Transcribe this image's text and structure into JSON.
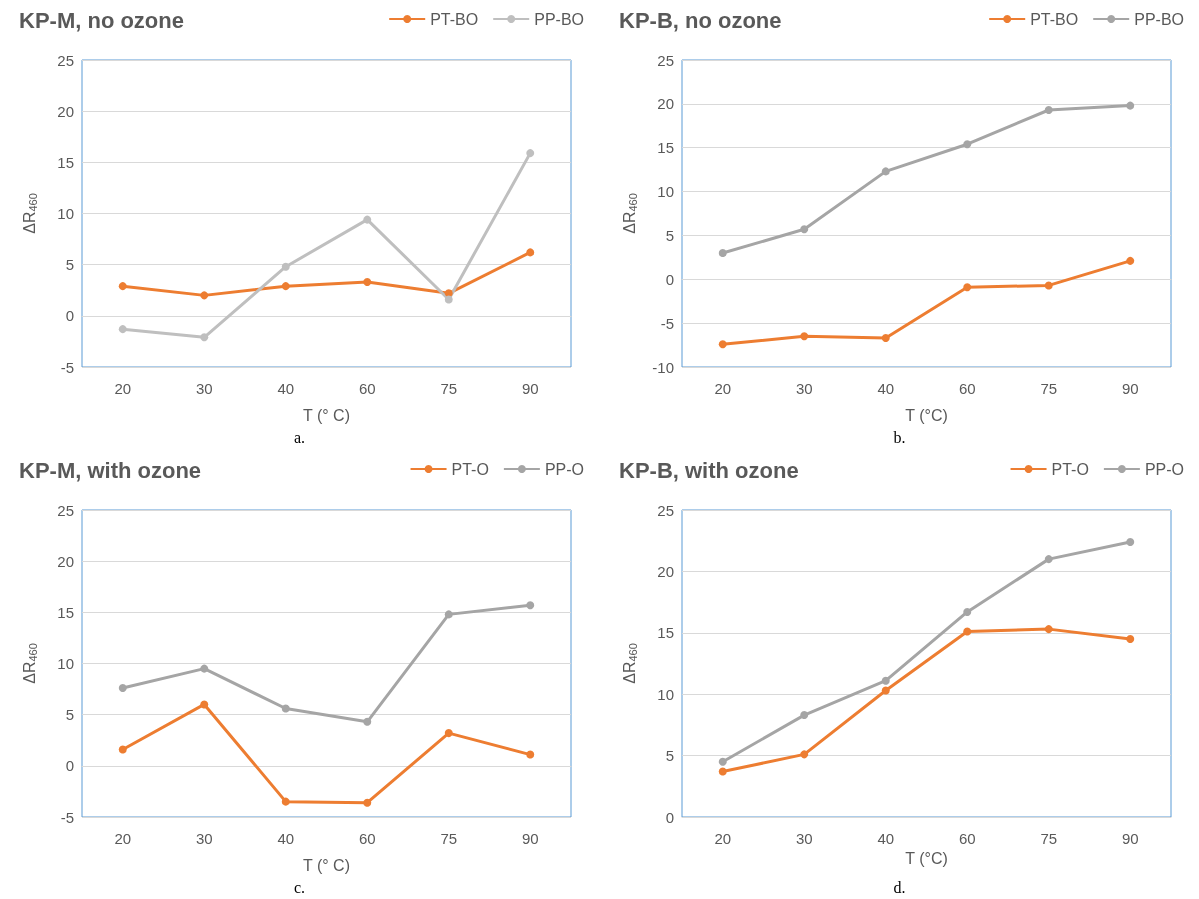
{
  "chart_data": [
    {
      "type": "line",
      "title": "KP-M, no ozone",
      "xlabel": "T (° C)",
      "ylabel": "ΔR$_{460}$",
      "categories": [
        "20",
        "30",
        "40",
        "60",
        "75",
        "90"
      ],
      "ylim": [
        -5,
        25
      ],
      "yticks": [
        -5,
        0,
        5,
        10,
        15,
        20,
        25
      ],
      "grid": "y",
      "legend": "top right",
      "marker": "circle",
      "annotations": [
        "a."
      ],
      "series": [
        {
          "name": "PT-BO",
          "color": "#ed7d31",
          "values": [
            2.9,
            2.0,
            2.9,
            3.3,
            2.2,
            6.2
          ]
        },
        {
          "name": "PP-BO",
          "color": "#bfbfbf",
          "values": [
            -1.3,
            -2.1,
            4.8,
            9.4,
            1.6,
            15.9
          ]
        }
      ]
    },
    {
      "type": "line",
      "title": "KP-B, no ozone",
      "xlabel": "T (°C)",
      "ylabel": "ΔR$_{460}$",
      "categories": [
        "20",
        "30",
        "40",
        "60",
        "75",
        "90"
      ],
      "ylim": [
        -10,
        25
      ],
      "yticks": [
        -10,
        -5,
        0,
        5,
        10,
        15,
        20,
        25
      ],
      "grid": "y",
      "legend": "top right",
      "marker": "circle",
      "annotations": [
        "b."
      ],
      "series": [
        {
          "name": "PT-BO",
          "color": "#ed7d31",
          "values": [
            -7.4,
            -6.5,
            -6.7,
            -0.9,
            -0.7,
            2.1
          ]
        },
        {
          "name": "PP-BO",
          "color": "#a5a5a5",
          "values": [
            3.0,
            5.7,
            12.3,
            15.4,
            19.3,
            19.8
          ]
        }
      ]
    },
    {
      "type": "line",
      "title": "KP-M, with ozone",
      "xlabel": "T (° C)",
      "ylabel": "ΔR$_{460}$",
      "categories": [
        "20",
        "30",
        "40",
        "60",
        "75",
        "90"
      ],
      "ylim": [
        -5,
        25
      ],
      "yticks": [
        -5,
        0,
        5,
        10,
        15,
        20,
        25
      ],
      "grid": "y",
      "legend": "top right",
      "marker": "circle",
      "annotations": [
        "c."
      ],
      "series": [
        {
          "name": "PT-O",
          "color": "#ed7d31",
          "values": [
            1.6,
            6.0,
            -3.5,
            -3.6,
            3.2,
            1.1
          ]
        },
        {
          "name": "PP-O",
          "color": "#a5a5a5",
          "values": [
            7.6,
            9.5,
            5.6,
            4.3,
            14.8,
            15.7
          ]
        }
      ]
    },
    {
      "type": "line",
      "title": "KP-B, with ozone",
      "xlabel": "T (°C)",
      "ylabel": "ΔR$_{460}$",
      "categories": [
        "20",
        "30",
        "40",
        "60",
        "75",
        "90"
      ],
      "ylim": [
        0,
        25
      ],
      "yticks": [
        0,
        5,
        10,
        15,
        20,
        25
      ],
      "grid": "y",
      "legend": "top right",
      "marker": "circle",
      "annotations": [
        "d."
      ],
      "series": [
        {
          "name": "PT-O",
          "color": "#ed7d31",
          "values": [
            3.7,
            5.1,
            10.3,
            15.1,
            15.3,
            14.5
          ]
        },
        {
          "name": "PP-O",
          "color": "#a5a5a5",
          "values": [
            4.5,
            8.3,
            11.1,
            16.7,
            21.0,
            22.4
          ]
        }
      ]
    }
  ]
}
